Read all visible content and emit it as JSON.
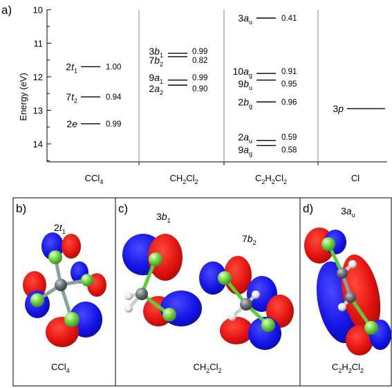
{
  "panel_a": {
    "tag": "a)",
    "ylabel": "Energy (eV)",
    "ticks": [
      "10",
      "11",
      "12",
      "13",
      "14"
    ],
    "columns": [
      {
        "name": "CCl4",
        "label_main": "CCl",
        "label_sub": "4"
      },
      {
        "name": "CH2Cl2",
        "label_main": "CH",
        "label_sub": "2",
        "label_main2": "Cl",
        "label_sub2": "2"
      },
      {
        "name": "C2H2Cl2",
        "label_main": "C",
        "label_sub": "2",
        "label_main2": "H",
        "label_sub2": "2",
        "label_main3": "Cl",
        "label_sub3": "2"
      },
      {
        "name": "Cl",
        "label_main": "Cl"
      }
    ]
  },
  "chart_data": {
    "type": "energy-level diagram",
    "ylabel": "Energy (eV)",
    "ylim": [
      10,
      14.5
    ],
    "y_inverted": true,
    "columns": [
      "CCl4",
      "CH2Cl2",
      "C2H2Cl2",
      "Cl"
    ],
    "levels": [
      {
        "column": "CCl4",
        "num": "2",
        "sym": "t",
        "sub": "1",
        "energy": 11.7,
        "value": "1.00"
      },
      {
        "column": "CCl4",
        "num": "7",
        "sym": "t",
        "sub": "2",
        "energy": 12.6,
        "value": "0.94"
      },
      {
        "column": "CCl4",
        "num": "2",
        "sym": "e",
        "sub": "",
        "energy": 13.4,
        "value": "0.99"
      },
      {
        "column": "CH2Cl2",
        "num": "3",
        "sym": "b",
        "sub": "1",
        "energy": 11.3,
        "value": "0.99"
      },
      {
        "column": "CH2Cl2",
        "num": "7",
        "sym": "b",
        "sub": "2",
        "energy": 11.4,
        "value": "0.82"
      },
      {
        "column": "CH2Cl2",
        "num": "9",
        "sym": "a",
        "sub": "1",
        "energy": 12.1,
        "value": "0.99"
      },
      {
        "column": "CH2Cl2",
        "num": "2",
        "sym": "a",
        "sub": "2",
        "energy": 12.25,
        "value": "0.90"
      },
      {
        "column": "C2H2Cl2",
        "num": "3",
        "sym": "a",
        "sub": "u",
        "energy": 10.25,
        "value": "0.41"
      },
      {
        "column": "C2H2Cl2",
        "num": "10",
        "sym": "a",
        "sub": "g",
        "energy": 11.9,
        "value": "0.91"
      },
      {
        "column": "C2H2Cl2",
        "num": "9",
        "sym": "b",
        "sub": "u",
        "energy": 12.1,
        "value": "0.95"
      },
      {
        "column": "C2H2Cl2",
        "num": "2",
        "sym": "b",
        "sub": "g",
        "energy": 12.75,
        "value": "0.96"
      },
      {
        "column": "C2H2Cl2",
        "num": "2",
        "sym": "a",
        "sub": "u",
        "energy": 13.9,
        "value": "0.59"
      },
      {
        "column": "C2H2Cl2",
        "num": "9",
        "sym": "a",
        "sub": "g",
        "energy": 14.05,
        "value": "0.58"
      },
      {
        "column": "Cl",
        "num": "3",
        "sym": "p",
        "sub": "",
        "energy": 12.95,
        "value": ""
      }
    ]
  },
  "panel_b": {
    "tag": "b)",
    "orbital": {
      "num": "2",
      "sym": "t",
      "sub": "1"
    },
    "molecule": {
      "main": "CCl",
      "sub": "4"
    }
  },
  "panel_c": {
    "tag": "c)",
    "orbital1": {
      "num": "3",
      "sym": "b",
      "sub": "1"
    },
    "orbital2": {
      "num": "7",
      "sym": "b",
      "sub": "2"
    },
    "molecule": {
      "m1": "CH",
      "s1": "2",
      "m2": "Cl",
      "s2": "2"
    }
  },
  "panel_d": {
    "tag": "d)",
    "orbital": {
      "num": "3",
      "sym": "a",
      "sub": "u"
    },
    "molecule": {
      "m1": "C",
      "s1": "2",
      "m2": "H",
      "s2": "2",
      "m3": "Cl",
      "s3": "2"
    }
  },
  "colors": {
    "positive_lobe": "#e3130f",
    "negative_lobe": "#1414e6",
    "chlorine_atom": "#7de04a",
    "carbon_atom": "#6b7078",
    "hydrogen_atom": "#eeeeee",
    "bond": "#5ccc3a"
  }
}
